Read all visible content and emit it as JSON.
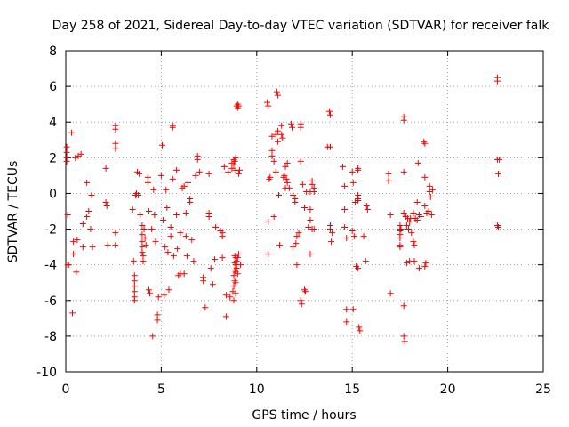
{
  "chart_data": {
    "type": "scatter",
    "title": "Day 258 of 2021, Sidereal Day-to-day VTEC variation (SDTVAR) for receiver falk",
    "xlabel": "GPS time / hours",
    "ylabel": "SDTVAR / TECUs",
    "xlim": [
      0,
      25
    ],
    "ylim": [
      -10,
      8
    ],
    "xticks": [
      0,
      5,
      10,
      15,
      20,
      25
    ],
    "yticks": [
      -10,
      -8,
      -6,
      -4,
      -2,
      0,
      2,
      4,
      6,
      8
    ],
    "grid": true,
    "marker": "plus",
    "marker_color": "#ff0000",
    "series": [
      {
        "name": "SDTVAR",
        "points": [
          [
            0.05,
            2.6
          ],
          [
            0.05,
            2.3
          ],
          [
            0.05,
            2.0
          ],
          [
            0.05,
            1.8
          ],
          [
            0.1,
            -1.2
          ],
          [
            0.1,
            -4.0
          ],
          [
            0.15,
            -4.0
          ],
          [
            0.3,
            3.4
          ],
          [
            0.35,
            -6.7
          ],
          [
            0.4,
            -3.4
          ],
          [
            0.4,
            -2.7
          ],
          [
            0.5,
            2.0
          ],
          [
            0.55,
            -4.4
          ],
          [
            0.6,
            -2.6
          ],
          [
            0.65,
            2.1
          ],
          [
            0.8,
            2.2
          ],
          [
            0.9,
            -3.0
          ],
          [
            0.9,
            -1.7
          ],
          [
            1.1,
            0.6
          ],
          [
            1.1,
            -1.3
          ],
          [
            1.2,
            -1.0
          ],
          [
            1.3,
            -2.0
          ],
          [
            1.35,
            -0.1
          ],
          [
            1.4,
            -3.0
          ],
          [
            2.1,
            1.4
          ],
          [
            2.1,
            -0.5
          ],
          [
            2.15,
            -0.7
          ],
          [
            2.2,
            -2.9
          ],
          [
            2.6,
            3.6
          ],
          [
            2.6,
            3.8
          ],
          [
            2.6,
            2.8
          ],
          [
            2.6,
            2.5
          ],
          [
            2.6,
            -2.2
          ],
          [
            2.6,
            -2.9
          ],
          [
            3.5,
            -0.9
          ],
          [
            3.55,
            -3.8
          ],
          [
            3.6,
            -4.6
          ],
          [
            3.6,
            -4.9
          ],
          [
            3.6,
            -5.2
          ],
          [
            3.6,
            -5.5
          ],
          [
            3.6,
            -5.8
          ],
          [
            3.6,
            -6.0
          ],
          [
            3.65,
            -0.1
          ],
          [
            3.7,
            0.0
          ],
          [
            3.75,
            1.2
          ],
          [
            3.8,
            -0.1
          ],
          [
            3.85,
            1.1
          ],
          [
            3.9,
            -1.2
          ],
          [
            4.0,
            -1.8
          ],
          [
            4.0,
            -2.3
          ],
          [
            4.0,
            -2.7
          ],
          [
            4.0,
            -3.0
          ],
          [
            4.0,
            -3.3
          ],
          [
            4.05,
            -3.5
          ],
          [
            4.05,
            -3.8
          ],
          [
            4.1,
            -2.0
          ],
          [
            4.15,
            -2.5
          ],
          [
            4.2,
            -2.9
          ],
          [
            4.3,
            0.9
          ],
          [
            4.3,
            0.6
          ],
          [
            4.35,
            -1.0
          ],
          [
            4.35,
            -5.4
          ],
          [
            4.4,
            -5.6
          ],
          [
            4.5,
            -2.0
          ],
          [
            4.55,
            -8.0
          ],
          [
            4.6,
            0.2
          ],
          [
            4.65,
            -1.2
          ],
          [
            4.7,
            -2.7
          ],
          [
            4.8,
            -6.8
          ],
          [
            4.8,
            -7.1
          ],
          [
            4.85,
            -5.8
          ],
          [
            5.0,
            1.0
          ],
          [
            5.05,
            2.7
          ],
          [
            5.1,
            -1.5
          ],
          [
            5.15,
            -5.7
          ],
          [
            5.2,
            -3.0
          ],
          [
            5.25,
            0.2
          ],
          [
            5.3,
            -0.8
          ],
          [
            5.35,
            -3.3
          ],
          [
            5.4,
            -5.4
          ],
          [
            5.5,
            -1.9
          ],
          [
            5.5,
            -2.4
          ],
          [
            5.6,
            3.8
          ],
          [
            5.6,
            3.7
          ],
          [
            5.6,
            0.8
          ],
          [
            5.65,
            -3.5
          ],
          [
            5.8,
            1.3
          ],
          [
            5.8,
            -1.2
          ],
          [
            5.85,
            -3.1
          ],
          [
            5.9,
            -4.6
          ],
          [
            6.0,
            -2.2
          ],
          [
            6.0,
            -4.5
          ],
          [
            6.1,
            0.3
          ],
          [
            6.2,
            0.4
          ],
          [
            6.2,
            -4.5
          ],
          [
            6.3,
            -1.1
          ],
          [
            6.3,
            -2.4
          ],
          [
            6.35,
            -3.5
          ],
          [
            6.4,
            0.6
          ],
          [
            6.5,
            -0.3
          ],
          [
            6.5,
            -0.5
          ],
          [
            6.6,
            -2.6
          ],
          [
            6.7,
            -3.8
          ],
          [
            6.8,
            1.0
          ],
          [
            6.9,
            2.1
          ],
          [
            6.9,
            1.9
          ],
          [
            7.0,
            1.2
          ],
          [
            7.2,
            -4.7
          ],
          [
            7.2,
            -4.9
          ],
          [
            7.3,
            -6.4
          ],
          [
            7.5,
            1.1
          ],
          [
            7.5,
            -1.1
          ],
          [
            7.5,
            -1.3
          ],
          [
            7.6,
            -4.2
          ],
          [
            7.7,
            -5.1
          ],
          [
            7.8,
            -3.7
          ],
          [
            7.85,
            -1.9
          ],
          [
            8.1,
            -2.1
          ],
          [
            8.2,
            -2.2
          ],
          [
            8.2,
            -2.4
          ],
          [
            8.2,
            -3.6
          ],
          [
            8.3,
            1.5
          ],
          [
            8.4,
            -5.7
          ],
          [
            8.4,
            -6.9
          ],
          [
            8.5,
            1.2
          ],
          [
            8.6,
            -5.8
          ],
          [
            8.7,
            1.7
          ],
          [
            8.7,
            1.4
          ],
          [
            8.75,
            -5.5
          ],
          [
            8.8,
            1.9
          ],
          [
            8.8,
            1.6
          ],
          [
            8.8,
            -4.6
          ],
          [
            8.8,
            -5.2
          ],
          [
            8.8,
            -6.0
          ],
          [
            8.85,
            1.8
          ],
          [
            8.85,
            -3.5
          ],
          [
            8.85,
            -3.9
          ],
          [
            8.85,
            -4.3
          ],
          [
            8.85,
            -4.9
          ],
          [
            8.9,
            2.0
          ],
          [
            8.9,
            1.3
          ],
          [
            8.9,
            -3.6
          ],
          [
            8.9,
            -4.0
          ],
          [
            8.9,
            -4.4
          ],
          [
            8.9,
            -5.0
          ],
          [
            8.9,
            -5.6
          ],
          [
            8.95,
            4.9
          ],
          [
            8.95,
            -3.8
          ],
          [
            8.95,
            -4.2
          ],
          [
            9.0,
            5.0
          ],
          [
            9.0,
            4.8
          ],
          [
            9.0,
            -3.6
          ],
          [
            9.0,
            -4.5
          ],
          [
            9.05,
            4.9
          ],
          [
            9.05,
            1.1
          ],
          [
            9.05,
            -3.4
          ],
          [
            9.1,
            1.3
          ],
          [
            9.15,
            -4.0
          ],
          [
            10.55,
            5.1
          ],
          [
            10.6,
            4.9
          ],
          [
            10.6,
            -1.6
          ],
          [
            10.6,
            -3.4
          ],
          [
            10.65,
            0.8
          ],
          [
            10.7,
            0.9
          ],
          [
            10.8,
            3.2
          ],
          [
            10.8,
            2.4
          ],
          [
            10.8,
            2.1
          ],
          [
            10.9,
            1.8
          ],
          [
            10.9,
            -1.3
          ],
          [
            11.0,
            3.3
          ],
          [
            11.0,
            1.2
          ],
          [
            11.05,
            5.7
          ],
          [
            11.1,
            5.5
          ],
          [
            11.1,
            3.5
          ],
          [
            11.1,
            2.9
          ],
          [
            11.15,
            -0.1
          ],
          [
            11.2,
            -2.9
          ],
          [
            11.3,
            3.8
          ],
          [
            11.3,
            3.3
          ],
          [
            11.35,
            3.1
          ],
          [
            11.4,
            0.9
          ],
          [
            11.45,
            1.0
          ],
          [
            11.5,
            0.3
          ],
          [
            11.5,
            1.5
          ],
          [
            11.55,
            0.8
          ],
          [
            11.6,
            1.7
          ],
          [
            11.6,
            0.6
          ],
          [
            11.7,
            0.3
          ],
          [
            11.8,
            3.9
          ],
          [
            11.85,
            3.7
          ],
          [
            11.9,
            -0.1
          ],
          [
            11.9,
            -3.0
          ],
          [
            12.0,
            -0.3
          ],
          [
            12.0,
            -0.5
          ],
          [
            12.05,
            -2.8
          ],
          [
            12.1,
            -4.0
          ],
          [
            12.1,
            -2.4
          ],
          [
            12.2,
            -2.2
          ],
          [
            12.3,
            3.9
          ],
          [
            12.3,
            3.7
          ],
          [
            12.3,
            1.8
          ],
          [
            12.3,
            -6.0
          ],
          [
            12.35,
            -6.2
          ],
          [
            12.4,
            0.5
          ],
          [
            12.5,
            -0.8
          ],
          [
            12.5,
            -5.4
          ],
          [
            12.55,
            -5.5
          ],
          [
            12.6,
            0.1
          ],
          [
            12.7,
            -1.9
          ],
          [
            12.8,
            0.1
          ],
          [
            12.8,
            -0.9
          ],
          [
            12.8,
            -1.5
          ],
          [
            12.8,
            -3.4
          ],
          [
            12.9,
            0.7
          ],
          [
            12.9,
            0.5
          ],
          [
            12.9,
            -2.0
          ],
          [
            13.0,
            0.3
          ],
          [
            13.0,
            0.1
          ],
          [
            13.0,
            -2.0
          ],
          [
            13.7,
            2.6
          ],
          [
            13.8,
            4.6
          ],
          [
            13.85,
            4.4
          ],
          [
            13.85,
            2.6
          ],
          [
            13.85,
            -1.8
          ],
          [
            13.85,
            -2.0
          ],
          [
            13.9,
            -2.7
          ],
          [
            13.95,
            -2.2
          ],
          [
            14.5,
            1.5
          ],
          [
            14.6,
            -0.9
          ],
          [
            14.6,
            0.4
          ],
          [
            14.6,
            -1.9
          ],
          [
            14.7,
            -2.5
          ],
          [
            14.7,
            -6.5
          ],
          [
            14.7,
            -7.2
          ],
          [
            15.0,
            1.2
          ],
          [
            15.0,
            -2.1
          ],
          [
            15.05,
            0.6
          ],
          [
            15.05,
            -6.5
          ],
          [
            15.1,
            -2.4
          ],
          [
            15.15,
            -0.5
          ],
          [
            15.2,
            -4.1
          ],
          [
            15.3,
            1.4
          ],
          [
            15.3,
            1.3
          ],
          [
            15.3,
            -0.1
          ],
          [
            15.3,
            -0.3
          ],
          [
            15.3,
            -0.4
          ],
          [
            15.3,
            -4.2
          ],
          [
            15.35,
            -7.5
          ],
          [
            15.4,
            -7.7
          ],
          [
            15.6,
            -2.4
          ],
          [
            15.7,
            -3.8
          ],
          [
            15.75,
            -0.7
          ],
          [
            15.8,
            -0.9
          ],
          [
            16.9,
            1.1
          ],
          [
            16.9,
            0.7
          ],
          [
            17.0,
            -1.2
          ],
          [
            17.0,
            -5.6
          ],
          [
            17.5,
            -1.8
          ],
          [
            17.5,
            -2.0
          ],
          [
            17.5,
            -2.1
          ],
          [
            17.5,
            -2.3
          ],
          [
            17.5,
            -2.5
          ],
          [
            17.5,
            -2.9
          ],
          [
            17.5,
            -3.0
          ],
          [
            17.55,
            -2.0
          ],
          [
            17.7,
            4.3
          ],
          [
            17.7,
            4.1
          ],
          [
            17.7,
            1.2
          ],
          [
            17.7,
            -1.1
          ],
          [
            17.7,
            -6.3
          ],
          [
            17.7,
            -8.0
          ],
          [
            17.75,
            -8.3
          ],
          [
            17.8,
            -1.3
          ],
          [
            17.85,
            -1.8
          ],
          [
            17.85,
            -3.9
          ],
          [
            17.9,
            -1.4
          ],
          [
            17.95,
            -2.0
          ],
          [
            18.0,
            -1.6
          ],
          [
            18.0,
            -3.8
          ],
          [
            18.05,
            -1.4
          ],
          [
            18.1,
            -2.2
          ],
          [
            18.2,
            -1.1
          ],
          [
            18.2,
            -2.7
          ],
          [
            18.25,
            -2.9
          ],
          [
            18.25,
            -3.8
          ],
          [
            18.3,
            -1.4
          ],
          [
            18.4,
            -0.5
          ],
          [
            18.4,
            -1.5
          ],
          [
            18.45,
            1.7
          ],
          [
            18.5,
            -4.2
          ],
          [
            18.5,
            -1.2
          ],
          [
            18.6,
            -1.3
          ],
          [
            18.75,
            2.9
          ],
          [
            18.8,
            2.8
          ],
          [
            18.8,
            0.9
          ],
          [
            18.8,
            -0.7
          ],
          [
            18.8,
            -4.1
          ],
          [
            18.85,
            -3.9
          ],
          [
            18.9,
            -1.1
          ],
          [
            19.0,
            -1.0
          ],
          [
            19.05,
            0.4
          ],
          [
            19.05,
            0.1
          ],
          [
            19.1,
            -0.2
          ],
          [
            19.15,
            -1.2
          ],
          [
            19.2,
            0.2
          ],
          [
            22.6,
            6.5
          ],
          [
            22.6,
            6.3
          ],
          [
            22.6,
            1.9
          ],
          [
            22.6,
            -1.8
          ],
          [
            22.65,
            1.1
          ],
          [
            22.65,
            -1.9
          ],
          [
            22.7,
            1.9
          ]
        ]
      }
    ]
  }
}
